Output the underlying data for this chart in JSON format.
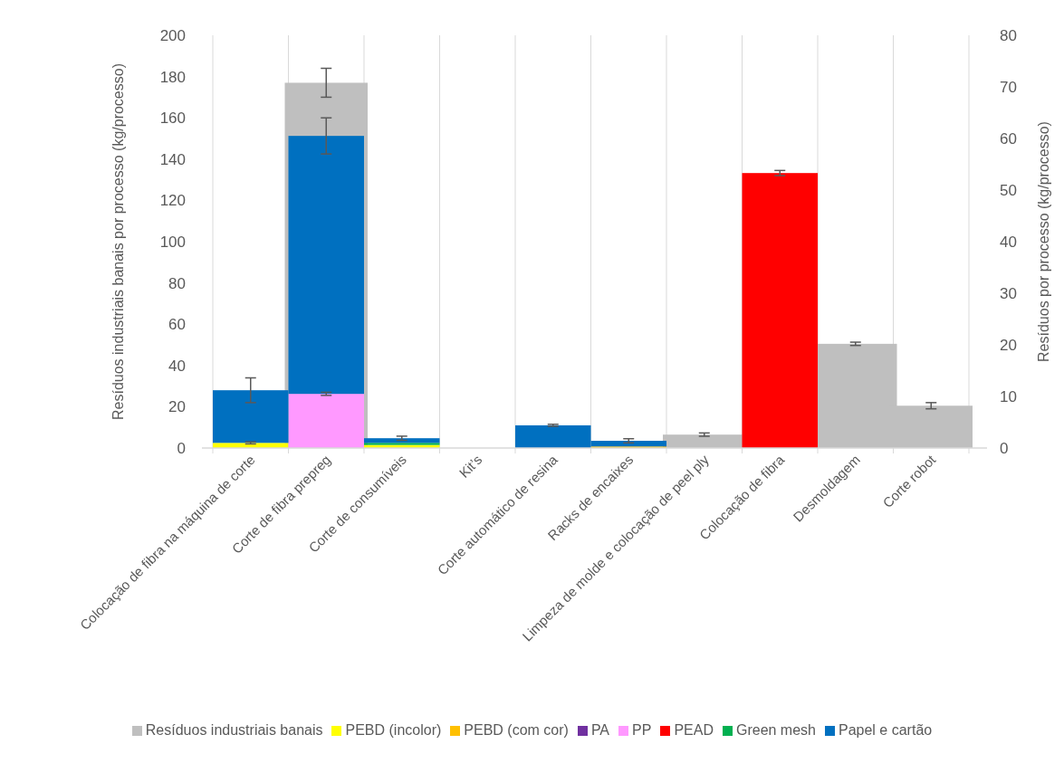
{
  "chart_data": {
    "type": "bar",
    "stacked": true,
    "categories": [
      "Colocação de fibra na máquina de corte",
      "Corte de fibra prepreg",
      "Corte de consumíveis",
      "Kit’s",
      "Corte automático de resina",
      "Racks de encaixes",
      "Limpeza de molde e colocação de peel ply",
      "Colocação de fibra",
      "Desmoldagem",
      "Corte robot"
    ],
    "series": [
      {
        "name": "Resíduos industriais banais",
        "color": "#bfbfbf",
        "values": [
          null,
          177,
          null,
          null,
          null,
          null,
          6.5,
          null,
          50.5,
          20.5
        ],
        "errors": [
          null,
          7,
          null,
          null,
          null,
          null,
          0.8,
          null,
          0.8,
          1.5
        ]
      },
      {
        "name": "PEBD (incolor)",
        "color": "#ffff00",
        "axis": "y2",
        "values": [
          1.0,
          null,
          0.6,
          null,
          null,
          null,
          null,
          null,
          null,
          null
        ],
        "errors": [
          0.2,
          null,
          null,
          null,
          null,
          null,
          null,
          null,
          null,
          null
        ]
      },
      {
        "name": "PEBD (com cor)",
        "color": "#ffc000",
        "axis": "y2",
        "values": [
          null,
          null,
          null,
          null,
          null,
          0.3,
          null,
          null,
          null,
          null
        ]
      },
      {
        "name": "PA",
        "color": "#7030a0",
        "axis": "y2",
        "values": [
          null,
          null,
          null,
          null,
          null,
          null,
          null,
          null,
          null,
          null
        ]
      },
      {
        "name": "PP",
        "color": "#ff99ff",
        "axis": "y2",
        "values": [
          null,
          10.5,
          null,
          null,
          null,
          null,
          null,
          null,
          null,
          null
        ],
        "errors": [
          null,
          0.3,
          null,
          null,
          null,
          null,
          null,
          null,
          null,
          null
        ]
      },
      {
        "name": "PEAD",
        "color": "#ff0000",
        "axis": "y2",
        "values": [
          null,
          null,
          null,
          null,
          null,
          null,
          null,
          53.3,
          null,
          null
        ],
        "errors": [
          null,
          null,
          null,
          null,
          null,
          null,
          null,
          0.5,
          null,
          null
        ]
      },
      {
        "name": "Green mesh",
        "color": "#00b050",
        "axis": "y2",
        "values": [
          null,
          null,
          0.4,
          null,
          null,
          null,
          null,
          null,
          null,
          null
        ]
      },
      {
        "name": "Papel e cartão",
        "color": "#0070c0",
        "axis": "y2",
        "values": [
          10.2,
          50,
          0.9,
          null,
          4.4,
          1.1,
          null,
          null,
          null,
          null
        ],
        "errors": [
          2.4,
          3.5,
          0.4,
          null,
          0.2,
          0.4,
          null,
          null,
          null,
          null
        ]
      }
    ],
    "ylabel": "Resíduos industriais banais por processo (kg/processo)",
    "y2label": "Resíduos por processo (kg/processo)",
    "ylim": [
      0,
      200
    ],
    "yticks": [
      0,
      20,
      40,
      60,
      80,
      100,
      120,
      140,
      160,
      180,
      200
    ],
    "y2lim": [
      0,
      80
    ],
    "y2ticks": [
      0,
      10,
      20,
      30,
      40,
      50,
      60,
      70,
      80
    ],
    "grid": "x",
    "legend": "bottom"
  }
}
